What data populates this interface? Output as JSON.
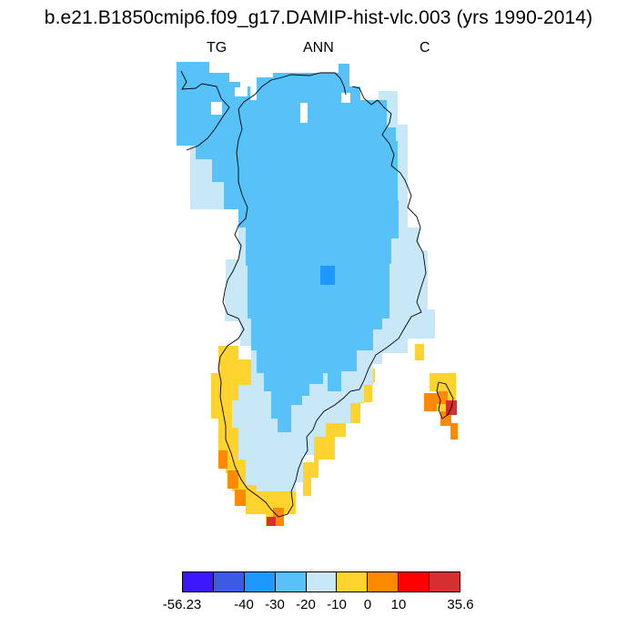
{
  "title": "b.e21.B1850cmip6.f09_g17.DAMIP-hist-vlc.003 (yrs 1990-2014)",
  "labels": {
    "left": "TG",
    "center": "ANN",
    "right": "C"
  },
  "colorbar": {
    "colors": [
      "#3d16ff",
      "#3d5ae5",
      "#1e97ff",
      "#56c2f7",
      "#c9e8f7",
      "#fed32e",
      "#ff8a00",
      "#ff0000",
      "#d62f2f"
    ],
    "tick_labels": [
      "-56.23",
      "-40",
      "-30",
      "-20",
      "-10",
      "0",
      "10",
      "35.6"
    ]
  },
  "map_layers": [
    {
      "name": "field-level-neg20-to-neg10",
      "color": "#c9e8f7"
    },
    {
      "name": "field-level-neg30-to-neg20",
      "color": "#56c2f7"
    },
    {
      "name": "field-level-neg40-to-neg30",
      "color": "#1e97ff"
    },
    {
      "name": "field-level-0-to-10",
      "color": "#fed32e"
    },
    {
      "name": "field-level-10-to-20",
      "color": "#ff8a00"
    },
    {
      "name": "field-level-20-to-35.6",
      "color": "#d62f2f"
    }
  ]
}
